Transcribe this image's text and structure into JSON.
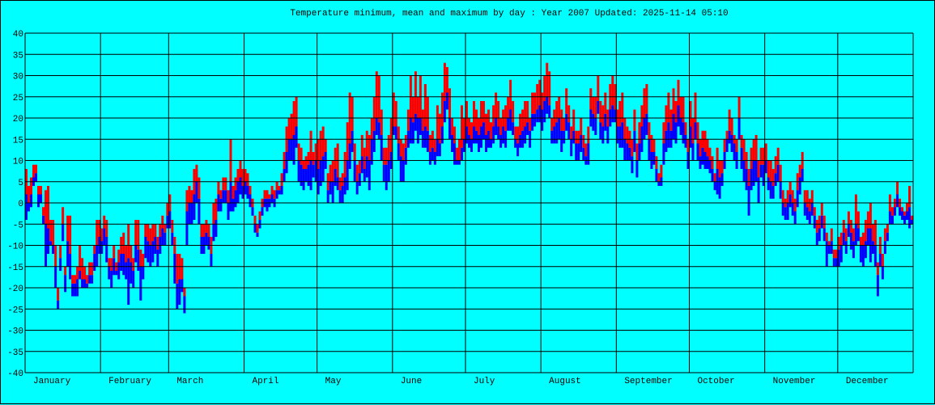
{
  "chart_data": {
    "type": "bar",
    "title": "Temperature minimum, mean and maximum by day : Year 2007   Updated: 2025-11-14 05:10",
    "xlabel": "",
    "ylabel": "",
    "ylim": [
      -40,
      40
    ],
    "yticks": [
      40,
      35,
      30,
      25,
      20,
      15,
      10,
      5,
      0,
      -5,
      -10,
      -15,
      -20,
      -25,
      -30,
      -35,
      -40
    ],
    "grid": true,
    "colors": {
      "background": "#00ffff",
      "min_to_mean": "#0000ff",
      "mean_to_max": "#ff0000",
      "grid": "#000000"
    },
    "series_names": [
      "min",
      "mean",
      "max"
    ],
    "months": [
      {
        "label": "January",
        "max": [
          8,
          4,
          6,
          9,
          9,
          4,
          4,
          -1,
          3,
          4,
          -4,
          -4,
          -10,
          -20,
          -10,
          -1,
          -15,
          -3,
          -3,
          -17,
          -17,
          -15,
          -10,
          -13,
          -15,
          -17,
          -14,
          -14,
          -10,
          -4,
          -4
        ],
        "mean": [
          2,
          0,
          2,
          6,
          7,
          2,
          2,
          -3,
          -5,
          -6,
          -9,
          -10,
          -15,
          -23,
          -13,
          -5,
          -17,
          -9,
          -12,
          -19,
          -19,
          -18,
          -16,
          -18,
          -18,
          -19,
          -17,
          -17,
          -12,
          -10,
          -8
        ],
        "min": [
          -4,
          -2,
          -1,
          4,
          5,
          -1,
          0,
          -5,
          -15,
          -12,
          -10,
          -12,
          -20,
          -25,
          -16,
          -9,
          -21,
          -15,
          -18,
          -22,
          -22,
          -22,
          -18,
          -20,
          -20,
          -20,
          -19,
          -19,
          -16,
          -15,
          -12
        ]
      },
      {
        "label": "February",
        "max": [
          -6,
          -3,
          -4,
          -13,
          -13,
          -10,
          -14,
          -11,
          -8,
          -7,
          -10,
          -5,
          -10,
          -13,
          -4,
          -4,
          -11,
          -12,
          -5,
          -5,
          -6,
          -5,
          -5,
          -8,
          -5,
          -3,
          -5,
          0
        ],
        "mean": [
          -9,
          -6,
          -8,
          -15,
          -16,
          -13,
          -16,
          -14,
          -12,
          -12,
          -14,
          -13,
          -14,
          -16,
          -10,
          -11,
          -15,
          -15,
          -8,
          -9,
          -10,
          -9,
          -8,
          -11,
          -8,
          -6,
          -7,
          -3
        ],
        "min": [
          -12,
          -10,
          -14,
          -18,
          -20,
          -17,
          -17,
          -18,
          -16,
          -17,
          -18,
          -24,
          -19,
          -20,
          -14,
          -16,
          -23,
          -18,
          -13,
          -14,
          -15,
          -14,
          -12,
          -15,
          -12,
          -10,
          -10,
          -6
        ]
      },
      {
        "label": "March",
        "max": [
          2,
          -4,
          -8,
          -12,
          -12,
          -13,
          -20,
          3,
          4,
          3,
          8,
          9,
          6,
          -5,
          -5,
          -4,
          -5,
          -8,
          0,
          1,
          5,
          3,
          6,
          6,
          3,
          15,
          4,
          6,
          8,
          10,
          8
        ],
        "mean": [
          -2,
          -7,
          -12,
          -19,
          -18,
          -18,
          -22,
          -2,
          0,
          0,
          2,
          5,
          1,
          -8,
          -8,
          -7,
          -8,
          -12,
          -5,
          -4,
          2,
          1,
          3,
          3,
          0,
          5,
          1,
          3,
          5,
          6,
          4
        ],
        "min": [
          -6,
          -10,
          -19,
          -25,
          -24,
          -21,
          -26,
          -10,
          -5,
          -5,
          -4,
          0,
          -5,
          -12,
          -12,
          -10,
          -11,
          -15,
          -9,
          -8,
          -2,
          -2,
          0,
          0,
          -4,
          -2,
          -2,
          -1,
          0,
          2,
          1
        ]
      },
      {
        "label": "April",
        "max": [
          8,
          7,
          4,
          1,
          -3,
          -5,
          -2,
          1,
          3,
          3,
          2,
          4,
          3,
          5,
          4,
          7,
          12,
          18,
          20,
          21,
          24,
          25,
          14,
          13,
          10,
          11,
          12,
          17,
          12,
          14
        ],
        "mean": [
          5,
          4,
          2,
          -1,
          -5,
          -7,
          -4,
          -1,
          1,
          1,
          1,
          2,
          1,
          3,
          3,
          4,
          8,
          12,
          15,
          15,
          16,
          18,
          10,
          9,
          8,
          8,
          9,
          10,
          9,
          10
        ],
        "min": [
          2,
          1,
          -1,
          -3,
          -7,
          -8,
          -6,
          -3,
          -1,
          -2,
          -1,
          0,
          -1,
          1,
          2,
          2,
          5,
          7,
          10,
          10,
          9,
          13,
          5,
          4,
          3,
          5,
          4,
          3,
          6,
          5
        ]
      },
      {
        "label": "May",
        "max": [
          15,
          17,
          18,
          15,
          7,
          9,
          10,
          13,
          14,
          6,
          7,
          12,
          19,
          26,
          25,
          14,
          9,
          10,
          16,
          13,
          17,
          16,
          20,
          25,
          31,
          30,
          22,
          13,
          13,
          16,
          20
        ],
        "mean": [
          8,
          10,
          11,
          12,
          3,
          5,
          5,
          8,
          6,
          3,
          4,
          6,
          10,
          14,
          17,
          10,
          5,
          7,
          11,
          8,
          11,
          10,
          15,
          17,
          20,
          19,
          16,
          9,
          9,
          10,
          12
        ],
        "min": [
          2,
          4,
          5,
          8,
          0,
          2,
          0,
          4,
          3,
          0,
          0,
          2,
          3,
          8,
          12,
          5,
          2,
          4,
          7,
          5,
          6,
          3,
          9,
          12,
          16,
          15,
          10,
          5,
          3,
          5,
          8
        ]
      },
      {
        "label": "June",
        "max": [
          26,
          24,
          18,
          15,
          14,
          16,
          22,
          30,
          25,
          31,
          25,
          30,
          22,
          28,
          25,
          16,
          17,
          15,
          23,
          21,
          26,
          33,
          32,
          27,
          20,
          18,
          13,
          15,
          23,
          20
        ],
        "mean": [
          18,
          18,
          14,
          11,
          10,
          13,
          17,
          20,
          19,
          21,
          20,
          20,
          17,
          18,
          17,
          12,
          13,
          12,
          15,
          14,
          18,
          24,
          26,
          20,
          16,
          14,
          10,
          10,
          13,
          15
        ],
        "min": [
          16,
          15,
          10,
          5,
          5,
          9,
          13,
          14,
          14,
          17,
          14,
          16,
          13,
          13,
          12,
          9,
          10,
          9,
          11,
          11,
          14,
          19,
          22,
          15,
          12,
          9,
          9,
          9,
          10,
          12
        ]
      },
      {
        "label": "July",
        "max": [
          24,
          20,
          19,
          24,
          22,
          20,
          24,
          24,
          21,
          22,
          19,
          23,
          26,
          24,
          20,
          22,
          23,
          25,
          29,
          24,
          18,
          18,
          21,
          22,
          24,
          24,
          20,
          26,
          26,
          28,
          29
        ],
        "mean": [
          18,
          16,
          15,
          18,
          17,
          16,
          18,
          19,
          16,
          17,
          15,
          18,
          20,
          18,
          16,
          18,
          17,
          20,
          22,
          19,
          15,
          14,
          16,
          17,
          18,
          19,
          17,
          21,
          21,
          22,
          23
        ],
        "min": [
          14,
          13,
          12,
          14,
          14,
          12,
          13,
          15,
          12,
          13,
          13,
          14,
          16,
          15,
          13,
          14,
          13,
          17,
          17,
          16,
          13,
          11,
          13,
          13,
          14,
          16,
          13,
          17,
          18,
          19,
          19
        ]
      },
      {
        "label": "August",
        "max": [
          26,
          30,
          33,
          31,
          20,
          22,
          24,
          25,
          22,
          20,
          27,
          23,
          18,
          22,
          17,
          17,
          20,
          16,
          14,
          18,
          27,
          25,
          25,
          30,
          24,
          23,
          26,
          22,
          28,
          30,
          28
        ],
        "mean": [
          22,
          24,
          25,
          23,
          17,
          18,
          19,
          20,
          17,
          17,
          21,
          19,
          15,
          17,
          14,
          14,
          16,
          13,
          11,
          14,
          22,
          21,
          20,
          24,
          19,
          18,
          21,
          18,
          22,
          23,
          22
        ],
        "min": [
          17,
          19,
          21,
          20,
          14,
          14,
          14,
          15,
          12,
          14,
          17,
          15,
          11,
          14,
          10,
          10,
          12,
          10,
          9,
          9,
          18,
          17,
          16,
          21,
          15,
          14,
          17,
          14,
          18,
          19,
          19
        ]
      },
      {
        "label": "September",
        "max": [
          22,
          24,
          26,
          20,
          18,
          17,
          15,
          22,
          14,
          19,
          23,
          27,
          28,
          19,
          16,
          15,
          11,
          7,
          9,
          19,
          23,
          26,
          22,
          27,
          24,
          29,
          25,
          25,
          19,
          15
        ],
        "mean": [
          18,
          18,
          19,
          15,
          14,
          13,
          11,
          17,
          10,
          14,
          18,
          20,
          21,
          15,
          12,
          12,
          8,
          5,
          6,
          14,
          17,
          19,
          17,
          21,
          19,
          23,
          20,
          19,
          16,
          12
        ],
        "min": [
          14,
          13,
          13,
          10,
          10,
          10,
          7,
          12,
          6,
          10,
          12,
          15,
          16,
          10,
          8,
          9,
          5,
          4,
          4,
          9,
          12,
          13,
          13,
          15,
          14,
          18,
          16,
          14,
          13,
          8
        ]
      },
      {
        "label": "October",
        "max": [
          24,
          20,
          26,
          19,
          15,
          17,
          17,
          15,
          13,
          11,
          7,
          13,
          10,
          10,
          15,
          17,
          22,
          20,
          16,
          15,
          25,
          16,
          15,
          12,
          8,
          13,
          15,
          16,
          10,
          13,
          13
        ],
        "mean": [
          18,
          14,
          19,
          14,
          11,
          13,
          12,
          11,
          10,
          8,
          5,
          8,
          6,
          7,
          12,
          15,
          17,
          16,
          14,
          12,
          20,
          13,
          10,
          8,
          4,
          8,
          10,
          10,
          6,
          9,
          9
        ],
        "min": [
          13,
          10,
          15,
          10,
          8,
          9,
          8,
          8,
          7,
          5,
          3,
          2,
          1,
          4,
          8,
          12,
          14,
          12,
          10,
          8,
          15,
          8,
          5,
          3,
          -3,
          3,
          4,
          5,
          0,
          6,
          4
        ]
      },
      {
        "label": "November",
        "max": [
          14,
          10,
          10,
          8,
          11,
          13,
          9,
          3,
          1,
          3,
          5,
          3,
          1,
          7,
          9,
          12,
          3,
          3,
          1,
          3,
          -1,
          -4,
          -3,
          0,
          -3,
          -7,
          -9,
          -6,
          -11,
          -11
        ],
        "mean": [
          10,
          6,
          5,
          4,
          7,
          9,
          5,
          0,
          -1,
          0,
          2,
          0,
          -2,
          3,
          6,
          8,
          0,
          -1,
          -2,
          0,
          -3,
          -7,
          -6,
          -3,
          -6,
          -9,
          -10,
          -9,
          -13,
          -13
        ],
        "min": [
          7,
          3,
          1,
          1,
          4,
          5,
          1,
          -3,
          -4,
          -4,
          -1,
          -3,
          -5,
          -1,
          2,
          5,
          -3,
          -4,
          -5,
          -3,
          -6,
          -10,
          -9,
          -6,
          -9,
          -15,
          -12,
          -12,
          -15,
          -15
        ]
      },
      {
        "label": "December",
        "max": [
          -8,
          -7,
          -4,
          -6,
          -2,
          -4,
          -6,
          2,
          -2,
          -8,
          -7,
          -4,
          -2,
          0,
          -5,
          -4,
          -14,
          -8,
          -12,
          -6,
          -5,
          2,
          -1,
          1,
          5,
          1,
          -1,
          -2,
          0,
          4,
          -3
        ],
        "mean": [
          -11,
          -10,
          -7,
          -9,
          -5,
          -7,
          -9,
          -5,
          -6,
          -10,
          -10,
          -9,
          -6,
          -6,
          -9,
          -10,
          -17,
          -12,
          -15,
          -9,
          -7,
          -2,
          -3,
          -1,
          2,
          -1,
          -2,
          -3,
          -2,
          -1,
          -4
        ],
        "min": [
          -15,
          -14,
          -10,
          -12,
          -8,
          -11,
          -13,
          -10,
          -9,
          -14,
          -15,
          -13,
          -10,
          -14,
          -12,
          -15,
          -22,
          -15,
          -18,
          -12,
          -9,
          -5,
          -5,
          -3,
          -1,
          -3,
          -4,
          -5,
          -4,
          -6,
          -5
        ]
      }
    ]
  }
}
